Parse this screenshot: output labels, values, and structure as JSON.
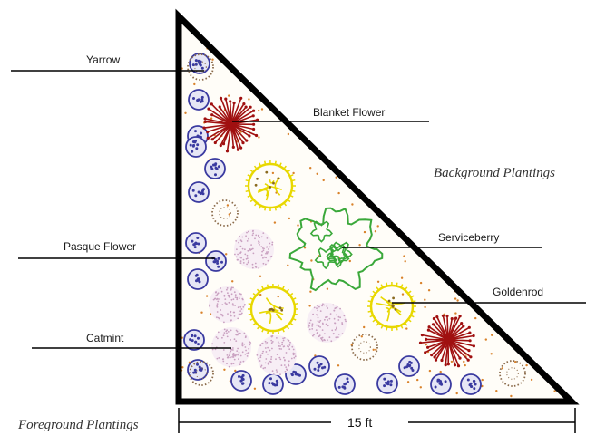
{
  "labels": {
    "yarrow": "Yarrow",
    "blanket_flower": "Blanket Flower",
    "pasque_flower": "Pasque Flower",
    "catmint": "Catmint",
    "serviceberry": "Serviceberry",
    "goldenrod": "Goldenrod"
  },
  "sections": {
    "background": "Background Plantings",
    "foreground": "Foreground Plantings"
  },
  "dimension": "15 ft",
  "colors": {
    "outline": "#000000",
    "mulch_dots": "#d9822b",
    "blue_plant": "#3a3aa0",
    "pink_plant": "#c9a0c0",
    "yellow_plant": "#e8d800",
    "red_plant": "#a01010",
    "green_plant": "#3aa83a",
    "brown_ring": "#8a6a4a"
  }
}
